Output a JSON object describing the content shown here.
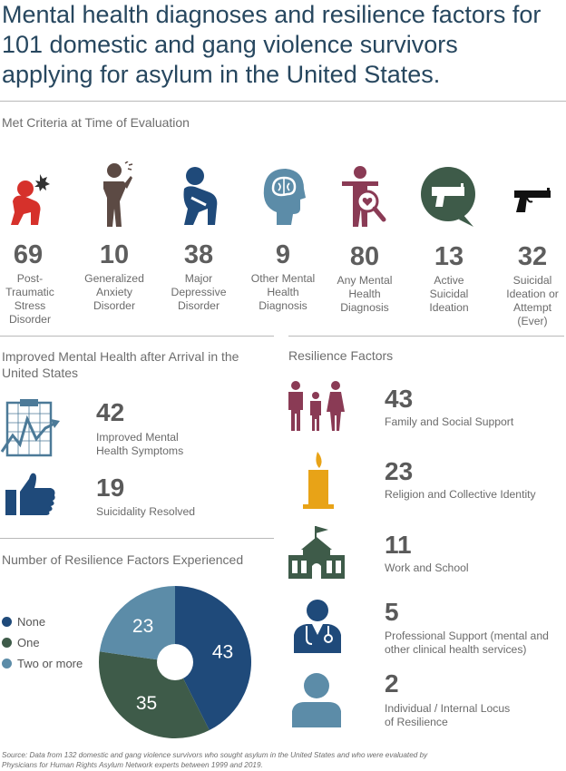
{
  "title": "Mental health diagnoses and resilience factors for 101 domestic and gang violence survivors applying for asylum in the United States.",
  "met_criteria": {
    "heading": "Met Criteria at Time of Evaluation",
    "items": [
      {
        "value": "69",
        "label": "Post-Traumatic Stress Disorder",
        "icon": "ptsd-figure-icon",
        "color": "#d6312b"
      },
      {
        "value": "10",
        "label": "Generalized Anxiety Disorder",
        "icon": "anxiety-figure-icon",
        "color": "#5c4a44"
      },
      {
        "value": "38",
        "label": "Major Depressive Disorder",
        "icon": "depression-figure-icon",
        "color": "#1f4a7a"
      },
      {
        "value": "9",
        "label": "Other Mental Health Diagnosis",
        "icon": "head-brain-icon",
        "color": "#5c8ca8"
      },
      {
        "value": "80",
        "label": "Any Mental Health Diagnosis",
        "icon": "person-magnifier-icon",
        "color": "#8a3b55"
      },
      {
        "value": "13",
        "label": "Active Suicidal Ideation",
        "icon": "gun-speech-bubble-icon",
        "color": "#3e5b49"
      },
      {
        "value": "32",
        "label": "Suicidal Ideation or Attempt (Ever)",
        "icon": "gun-icon",
        "color": "#111111"
      }
    ]
  },
  "improved": {
    "heading": "Improved Mental Health after Arrival in the United States",
    "items": [
      {
        "value": "42",
        "label": "Improved Mental Health Symptoms",
        "icon": "clipboard-chart-icon"
      },
      {
        "value": "19",
        "label": "Suicidality Resolved",
        "icon": "thumbs-up-icon"
      }
    ]
  },
  "resilience": {
    "heading": "Resilience Factors",
    "items": [
      {
        "value": "43",
        "label": "Family and Social Support",
        "icon": "family-icon"
      },
      {
        "value": "23",
        "label": "Religion and Collective Identity",
        "icon": "candle-icon"
      },
      {
        "value": "11",
        "label": "Work and School",
        "icon": "school-building-icon"
      },
      {
        "value": "5",
        "label": "Professional Support (mental and other clinical health services)",
        "icon": "doctor-icon"
      },
      {
        "value": "2",
        "label": "Individual / Internal Locus of Resilience",
        "icon": "person-icon"
      }
    ]
  },
  "number_resilience": {
    "heading": "Number of Resilience Factors Experienced",
    "legend": [
      {
        "label": "None",
        "color": "#1f4a7a"
      },
      {
        "label": "One",
        "color": "#3e5b49"
      },
      {
        "label": "Two or more",
        "color": "#5c8ca8"
      }
    ]
  },
  "chart_data": {
    "type": "pie",
    "categories": [
      "None",
      "One",
      "Two or more"
    ],
    "values": [
      43,
      35,
      23
    ],
    "colors": [
      "#1f4a7a",
      "#3e5b49",
      "#5c8ca8"
    ],
    "donut": true
  },
  "source": "Source: Data from 132 domestic and gang violence survivors who sought asylum in the United States and who were evaluated by Physicians for Human Rights Asylum Network experts between 1999 and 2019."
}
